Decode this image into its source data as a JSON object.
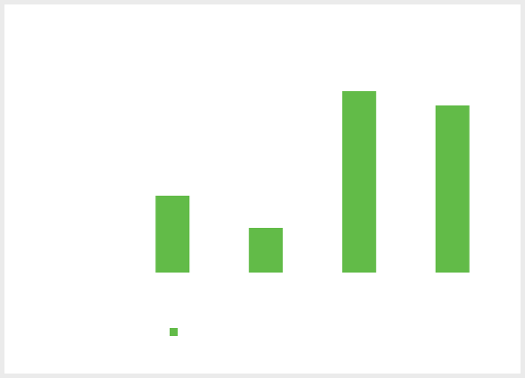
{
  "chart_data": {
    "type": "bar",
    "categories": [
      null,
      null,
      null,
      null
    ],
    "series": [
      {
        "color": "#62bb48",
        "values": [
          86,
          50,
          203,
          187
        ]
      }
    ],
    "ylim": [
      0,
      250
    ]
  }
}
